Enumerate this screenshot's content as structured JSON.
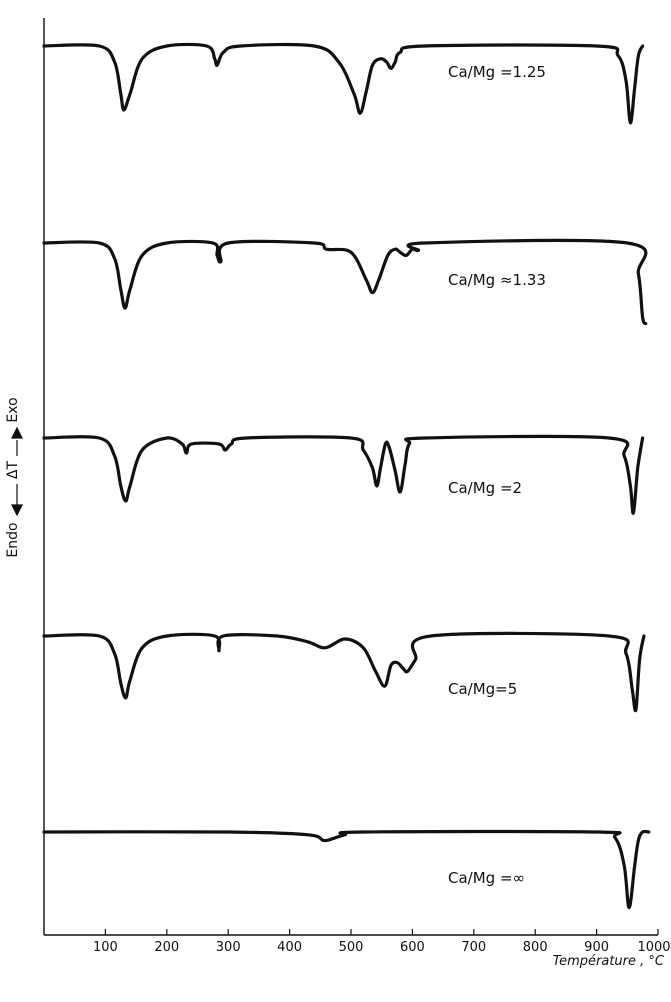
{
  "chart_data": {
    "type": "line",
    "title": "",
    "xlabel": "Température , °C",
    "ylabel_endo": "Endo",
    "ylabel_delta": "ΔT",
    "ylabel_exo": "Exo",
    "xlim": [
      0,
      1000
    ],
    "x_ticks": [
      100,
      200,
      300,
      400,
      500,
      600,
      700,
      800,
      900,
      1000
    ],
    "grid": false,
    "legend": "none",
    "units": "relative ΔT (0 = baseline, negative = endothermic)",
    "series": [
      {
        "name": "Ca/Mg = 1.25",
        "x": [
          0,
          90,
          115,
          125,
          130,
          140,
          160,
          200,
          265,
          278,
          282,
          292,
          320,
          440,
          480,
          505,
          515,
          525,
          535,
          548,
          558,
          565,
          572,
          580,
          620,
          900,
          935,
          948,
          955,
          962,
          968,
          975
        ],
        "y": [
          0,
          0,
          -0.25,
          -0.75,
          -1.0,
          -0.75,
          -0.2,
          0,
          0,
          -0.2,
          -0.3,
          -0.1,
          0,
          0,
          -0.25,
          -0.75,
          -1.05,
          -0.7,
          -0.3,
          -0.2,
          -0.25,
          -0.35,
          -0.25,
          -0.1,
          0,
          0,
          -0.15,
          -0.55,
          -1.2,
          -0.65,
          -0.15,
          0
        ]
      },
      {
        "name": "Ca/Mg = 1.33",
        "x": [
          0,
          90,
          115,
          125,
          132,
          140,
          160,
          200,
          275,
          282,
          288,
          300,
          440,
          460,
          500,
          525,
          535,
          545,
          560,
          572,
          580,
          590,
          600,
          610,
          620,
          950,
          968,
          975,
          980
        ],
        "y": [
          0,
          0,
          -0.25,
          -0.75,
          -1.05,
          -0.75,
          -0.2,
          0,
          0,
          -0.2,
          -0.3,
          0,
          0,
          -0.1,
          -0.15,
          -0.6,
          -0.8,
          -0.6,
          -0.2,
          -0.1,
          -0.15,
          -0.2,
          -0.1,
          -0.12,
          0,
          0,
          -0.5,
          -1.2,
          -1.3
        ]
      },
      {
        "name": "Ca/Mg = 2",
        "x": [
          0,
          90,
          115,
          125,
          133,
          140,
          160,
          200,
          225,
          232,
          240,
          285,
          295,
          305,
          330,
          500,
          520,
          535,
          542,
          548,
          556,
          562,
          572,
          580,
          588,
          595,
          620,
          920,
          945,
          955,
          960,
          967,
          975
        ],
        "y": [
          0,
          0,
          -0.3,
          -0.8,
          -1.05,
          -0.8,
          -0.2,
          0,
          -0.1,
          -0.25,
          -0.1,
          -0.1,
          -0.2,
          -0.1,
          0,
          0,
          -0.2,
          -0.5,
          -0.8,
          -0.5,
          -0.1,
          -0.15,
          -0.55,
          -0.9,
          -0.45,
          -0.1,
          0,
          0,
          -0.3,
          -0.8,
          -1.25,
          -0.5,
          0
        ]
      },
      {
        "name": "Ca/Mg = 5",
        "x": [
          0,
          90,
          115,
          125,
          133,
          140,
          160,
          200,
          278,
          285,
          292,
          380,
          430,
          458,
          490,
          520,
          540,
          555,
          565,
          575,
          585,
          592,
          605,
          630,
          920,
          948,
          958,
          964,
          970,
          977
        ],
        "y": [
          0,
          0,
          -0.3,
          -0.8,
          -1.05,
          -0.75,
          -0.2,
          0,
          0,
          -0.25,
          0,
          0,
          -0.1,
          -0.2,
          -0.05,
          -0.2,
          -0.6,
          -0.85,
          -0.5,
          -0.45,
          -0.55,
          -0.6,
          -0.4,
          0,
          0,
          -0.3,
          -0.9,
          -1.25,
          -0.4,
          0
        ]
      },
      {
        "name": "Ca/Mg = ∞",
        "x": [
          0,
          300,
          430,
          455,
          470,
          490,
          520,
          900,
          930,
          945,
          953,
          962,
          968,
          975,
          985
        ],
        "y": [
          0,
          0,
          -0.05,
          -0.15,
          -0.12,
          -0.05,
          0,
          0,
          -0.1,
          -0.6,
          -1.35,
          -0.6,
          -0.15,
          0,
          0
        ]
      }
    ],
    "curve_labels": [
      "Ca/Mg =1.25",
      "Ca/Mg ≈1.33",
      "Ca/Mg =2",
      "Ca/Mg=5",
      "Ca/Mg =∞"
    ],
    "stroke_color": "#111111"
  }
}
